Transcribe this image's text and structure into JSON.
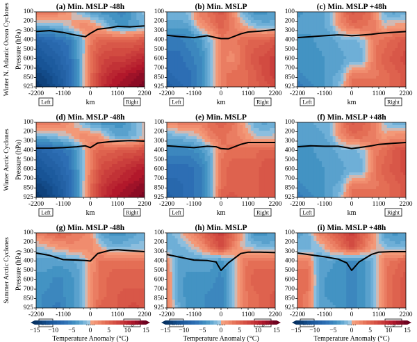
{
  "chart_data": {
    "type": "heatmap",
    "description": "3x3 grid of vertical cross-section contour plots of temperature anomaly (°C) across cyclone-relative distance with a black tropopause line",
    "row_labels": [
      "Winter N. Atlantic Ocean Cyclones",
      "Winter Arctic Cyclones",
      "Summer Arctic Cyclones"
    ],
    "ylabel": "Pressure (hPa)",
    "xlabel": "km",
    "x_ticks": [
      "-2200",
      "-1100",
      "0",
      "1100",
      "2200"
    ],
    "y_ticks": [
      "100",
      "200",
      "300",
      "400",
      "500",
      "600",
      "700",
      "850",
      "925"
    ],
    "xlim": [
      -2200,
      2200
    ],
    "ylim": [
      925,
      100
    ],
    "side_labels": {
      "left": "Left",
      "right": "Right"
    },
    "colorbar": {
      "label": "Temperature Anomaly (°C)",
      "ticks": [
        "−15",
        "−10",
        "−5",
        "0",
        "5",
        "10",
        "15"
      ],
      "range": [
        -15,
        15
      ],
      "cmap": "RdBu_r"
    },
    "panels": [
      {
        "id": "a",
        "title": "(a) Min. MSLP -48h",
        "row": 0,
        "col": 0,
        "tropopause": {
          "x": [
            -2200,
            -1650,
            -1100,
            -550,
            -200,
            0,
            300,
            800,
            1100,
            1600,
            2200
          ],
          "p": [
            310,
            300,
            320,
            350,
            365,
            330,
            285,
            270,
            255,
            260,
            250
          ]
        },
        "field": [
          [
            4,
            4,
            3,
            1,
            -1,
            -3,
            -4,
            -4,
            -5,
            -3,
            -1
          ],
          [
            -2,
            -2,
            -2,
            0,
            2,
            2,
            0,
            -3,
            -4,
            -3,
            -2
          ],
          [
            -9,
            -8,
            -7,
            -6,
            -3,
            3,
            5,
            5,
            5,
            5,
            6
          ],
          [
            -11,
            -10,
            -9,
            -7,
            -3,
            4,
            7,
            8,
            8,
            9,
            10
          ],
          [
            -13,
            -12,
            -10,
            -8,
            -3,
            4,
            8,
            10,
            11,
            12,
            13
          ],
          [
            -14,
            -13,
            -11,
            -8,
            -3,
            4,
            9,
            11,
            12,
            13,
            14
          ]
        ]
      },
      {
        "id": "b",
        "title": "(b) Min. MSLP",
        "row": 0,
        "col": 1,
        "tropopause": {
          "x": [
            -2200,
            -1650,
            -1100,
            -550,
            -200,
            0,
            300,
            800,
            1100,
            1600,
            2200
          ],
          "p": [
            350,
            365,
            375,
            355,
            375,
            385,
            385,
            335,
            315,
            305,
            290
          ]
        },
        "field": [
          [
            -2,
            -2,
            -1,
            3,
            4,
            6,
            3,
            -2,
            -4,
            -4,
            -3
          ],
          [
            -3,
            -3,
            -3,
            1,
            3,
            5,
            3,
            1,
            -1,
            -2,
            -2
          ],
          [
            -6,
            -6,
            -5,
            -4,
            -1,
            3,
            3,
            4,
            5,
            5,
            6
          ],
          [
            -7,
            -7,
            -6,
            -5,
            -2,
            3,
            2,
            4,
            6,
            7,
            8
          ],
          [
            -8,
            -7,
            -7,
            -5,
            -2,
            3,
            4,
            4,
            5,
            7,
            8
          ],
          [
            -9,
            -8,
            -7,
            -5,
            -2,
            3,
            4,
            4,
            5,
            6,
            7
          ]
        ]
      },
      {
        "id": "c",
        "title": "(c) Min. MSLP +48h",
        "row": 0,
        "col": 2,
        "tropopause": {
          "x": [
            -2200,
            -1650,
            -1100,
            -550,
            -200,
            0,
            300,
            800,
            1100,
            1600,
            2200
          ],
          "p": [
            375,
            365,
            355,
            345,
            350,
            355,
            350,
            340,
            330,
            320,
            310
          ]
        },
        "field": [
          [
            -4,
            -3,
            -3,
            -2,
            3,
            6,
            5,
            3,
            -2,
            -3,
            -2
          ],
          [
            -3,
            -3,
            -3,
            -2,
            2,
            4,
            4,
            3,
            0,
            1,
            1
          ],
          [
            -4,
            -4,
            -3,
            -3,
            -2,
            -2,
            -1,
            3,
            4,
            5,
            6
          ],
          [
            -4,
            -4,
            -4,
            -3,
            -3,
            -2,
            -2,
            3,
            5,
            6,
            7
          ],
          [
            -5,
            -4,
            -4,
            -3,
            -2,
            3,
            3,
            3,
            4,
            5,
            6
          ],
          [
            -6,
            -5,
            -4,
            -3,
            -1,
            4,
            4,
            4,
            4,
            5,
            6
          ]
        ]
      },
      {
        "id": "d",
        "title": "(d) Min. MSLP -48h",
        "row": 1,
        "col": 0,
        "tropopause": {
          "x": [
            -2200,
            -1650,
            -1100,
            -550,
            -200,
            0,
            300,
            800,
            1100,
            1600,
            2200
          ],
          "p": [
            375,
            375,
            370,
            360,
            350,
            370,
            320,
            305,
            300,
            295,
            300
          ]
        },
        "field": [
          [
            4,
            4,
            3,
            2,
            -1,
            -3,
            -4,
            -4,
            -4,
            -2,
            0
          ],
          [
            -2,
            -2,
            -1,
            0,
            2,
            2,
            1,
            -2,
            -3,
            -2,
            0
          ],
          [
            -9,
            -8,
            -7,
            -6,
            -3,
            3,
            5,
            5,
            6,
            6,
            7
          ],
          [
            -11,
            -10,
            -9,
            -7,
            -3,
            3,
            7,
            8,
            9,
            10,
            11
          ],
          [
            -13,
            -12,
            -10,
            -8,
            -3,
            4,
            8,
            10,
            11,
            12,
            13
          ],
          [
            -14,
            -13,
            -11,
            -8,
            -3,
            4,
            9,
            11,
            12,
            13,
            14
          ]
        ]
      },
      {
        "id": "e",
        "title": "(e) Min. MSLP",
        "row": 1,
        "col": 1,
        "tropopause": {
          "x": [
            -2200,
            -1650,
            -1100,
            -550,
            -200,
            0,
            300,
            800,
            1100,
            1600,
            2200
          ],
          "p": [
            350,
            360,
            370,
            355,
            360,
            380,
            385,
            335,
            315,
            315,
            315
          ]
        },
        "field": [
          [
            2,
            3,
            3,
            3,
            4,
            5,
            4,
            1,
            -2,
            -3,
            -2
          ],
          [
            -2,
            -2,
            -1,
            0,
            3,
            4,
            3,
            2,
            0,
            -1,
            0
          ],
          [
            -5,
            -5,
            -5,
            -4,
            -2,
            3,
            4,
            4,
            4,
            5,
            5
          ],
          [
            -7,
            -7,
            -7,
            -6,
            -3,
            4,
            5,
            5,
            5,
            6,
            6
          ],
          [
            -8,
            -8,
            -7,
            -6,
            -3,
            4,
            5,
            5,
            5,
            6,
            6
          ],
          [
            -9,
            -8,
            -7,
            -6,
            -3,
            5,
            6,
            5,
            5,
            6,
            6
          ]
        ]
      },
      {
        "id": "f",
        "title": "(f) Min. MSLP +48h",
        "row": 1,
        "col": 2,
        "tropopause": {
          "x": [
            -2200,
            -1650,
            -1100,
            -550,
            -200,
            0,
            300,
            800,
            1100,
            1600,
            2200
          ],
          "p": [
            360,
            350,
            355,
            355,
            370,
            380,
            370,
            350,
            335,
            325,
            315
          ]
        },
        "field": [
          [
            -3,
            -3,
            -2,
            -2,
            3,
            6,
            5,
            3,
            -1,
            -2,
            -2
          ],
          [
            -3,
            -3,
            -3,
            -2,
            2,
            4,
            4,
            3,
            1,
            2,
            2
          ],
          [
            -4,
            -4,
            -3,
            -3,
            -2,
            -2,
            -1,
            3,
            4,
            6,
            7
          ],
          [
            -4,
            -4,
            -4,
            -3,
            -3,
            -2,
            -2,
            3,
            5,
            6,
            7
          ],
          [
            -5,
            -4,
            -4,
            -3,
            -2,
            3,
            3,
            3,
            4,
            5,
            6
          ],
          [
            -6,
            -5,
            -4,
            -3,
            -1,
            4,
            4,
            4,
            4,
            5,
            6
          ]
        ]
      },
      {
        "id": "g",
        "title": "(g) Min. MSLP -48h",
        "row": 2,
        "col": 0,
        "tropopause": {
          "x": [
            -2200,
            -1650,
            -1100,
            -550,
            -200,
            0,
            300,
            800,
            1100,
            1600,
            2200
          ],
          "p": [
            315,
            340,
            385,
            390,
            395,
            400,
            320,
            285,
            280,
            290,
            300
          ]
        },
        "field": [
          [
            3,
            4,
            5,
            4,
            3,
            2,
            -3,
            -4,
            -4,
            -3,
            -2
          ],
          [
            -1,
            0,
            1,
            2,
            2,
            2,
            0,
            -2,
            -2,
            -1,
            -1
          ],
          [
            -3,
            -3,
            -3,
            -3,
            -2,
            1,
            4,
            4,
            4,
            4,
            4
          ],
          [
            -4,
            -4,
            -5,
            -4,
            -3,
            2,
            4,
            5,
            5,
            5,
            5
          ],
          [
            -4,
            -5,
            -5,
            -4,
            -3,
            2,
            4,
            5,
            6,
            6,
            6
          ],
          [
            -4,
            -5,
            -6,
            -4,
            -3,
            2,
            5,
            5,
            6,
            7,
            6
          ]
        ]
      },
      {
        "id": "h",
        "title": "(h) Min. MSLP",
        "row": 2,
        "col": 1,
        "tropopause": {
          "x": [
            -2200,
            -1650,
            -1100,
            -550,
            -200,
            0,
            300,
            800,
            1100,
            1600,
            2200
          ],
          "p": [
            330,
            360,
            390,
            395,
            410,
            500,
            420,
            320,
            305,
            305,
            310
          ]
        },
        "field": [
          [
            -2,
            -1,
            2,
            4,
            6,
            8,
            5,
            0,
            -4,
            -4,
            -3
          ],
          [
            -2,
            -2,
            -1,
            1,
            4,
            7,
            3,
            0,
            -1,
            -2,
            -2
          ],
          [
            2,
            -3,
            -3,
            -3,
            -3,
            -4,
            -2,
            3,
            4,
            4,
            4
          ],
          [
            3,
            -3,
            -4,
            -4,
            -4,
            -5,
            -2,
            3,
            5,
            5,
            5
          ],
          [
            3,
            -3,
            -4,
            -4,
            -5,
            -5,
            -2,
            3,
            4,
            5,
            6
          ],
          [
            3,
            -2,
            -4,
            -4,
            -5,
            -5,
            -2,
            3,
            4,
            5,
            6
          ]
        ]
      },
      {
        "id": "i",
        "title": "(i) Min. MSLP +48h",
        "row": 2,
        "col": 2,
        "tropopause": {
          "x": [
            -2200,
            -1650,
            -1100,
            -550,
            -200,
            0,
            300,
            800,
            1100,
            1600,
            2200
          ],
          "p": [
            315,
            335,
            355,
            380,
            420,
            500,
            410,
            330,
            305,
            300,
            300
          ]
        },
        "field": [
          [
            -3,
            -2,
            3,
            4,
            6,
            8,
            5,
            2,
            -3,
            -4,
            -3
          ],
          [
            -2,
            -2,
            -1,
            2,
            4,
            7,
            4,
            1,
            -1,
            -2,
            -2
          ],
          [
            3,
            3,
            -3,
            -3,
            -4,
            -5,
            -4,
            -2,
            3,
            4,
            5
          ],
          [
            4,
            4,
            -3,
            -4,
            -4,
            -5,
            -4,
            -2,
            3,
            5,
            6
          ],
          [
            4,
            3,
            -3,
            -4,
            -4,
            -5,
            -4,
            -2,
            3,
            5,
            6
          ],
          [
            4,
            3,
            -3,
            -3,
            -4,
            -5,
            -4,
            -2,
            3,
            5,
            6
          ]
        ]
      }
    ],
    "field_grid": {
      "x": [
        -2200,
        -1760,
        -1320,
        -880,
        -440,
        0,
        440,
        880,
        1320,
        1760,
        2200
      ],
      "p": [
        100,
        250,
        400,
        600,
        800,
        925
      ]
    }
  }
}
